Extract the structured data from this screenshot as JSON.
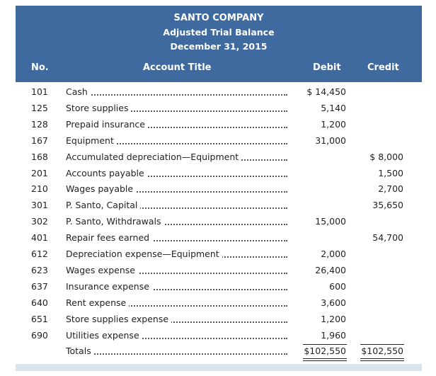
{
  "header": {
    "company": "SANTO COMPANY",
    "title": "Adjusted Trial Balance",
    "date": "December 31, 2015"
  },
  "table": {
    "columns": [
      "No.",
      "Account Title",
      "Debit",
      "Credit"
    ],
    "rows": [
      {
        "no": "101",
        "account": "Cash",
        "debit": "$ 14,450"
      },
      {
        "no": "125",
        "account": "Store supplies",
        "debit": "5,140"
      },
      {
        "no": "128",
        "account": "Prepaid insurance",
        "debit": "1,200"
      },
      {
        "no": "167",
        "account": "Equipment",
        "debit": "31,000"
      },
      {
        "no": "168",
        "account": "Accumulated depreciation—Equipment",
        "credit": "$ 8,000"
      },
      {
        "no": "201",
        "account": "Accounts payable",
        "credit": "1,500"
      },
      {
        "no": "210",
        "account": "Wages payable",
        "credit": "2,700"
      },
      {
        "no": "301",
        "account": "P. Santo, Capital",
        "credit": "35,650"
      },
      {
        "no": "302",
        "account": "P. Santo, Withdrawals",
        "debit": "15,000"
      },
      {
        "no": "401",
        "account": "Repair fees earned",
        "credit": "54,700"
      },
      {
        "no": "612",
        "account": "Depreciation expense—Equipment",
        "debit": "2,000"
      },
      {
        "no": "623",
        "account": "Wages expense",
        "debit": "26,400"
      },
      {
        "no": "637",
        "account": "Insurance expense",
        "debit": "600"
      },
      {
        "no": "640",
        "account": "Rent expense",
        "debit": "3,600"
      },
      {
        "no": "651",
        "account": "Store supplies expense",
        "debit": "1,200"
      },
      {
        "no": "690",
        "account": "Utilities expense",
        "debit": "1,960"
      }
    ],
    "totals": {
      "account": "Totals",
      "debit": "$102,550",
      "credit": "$102,550"
    }
  }
}
